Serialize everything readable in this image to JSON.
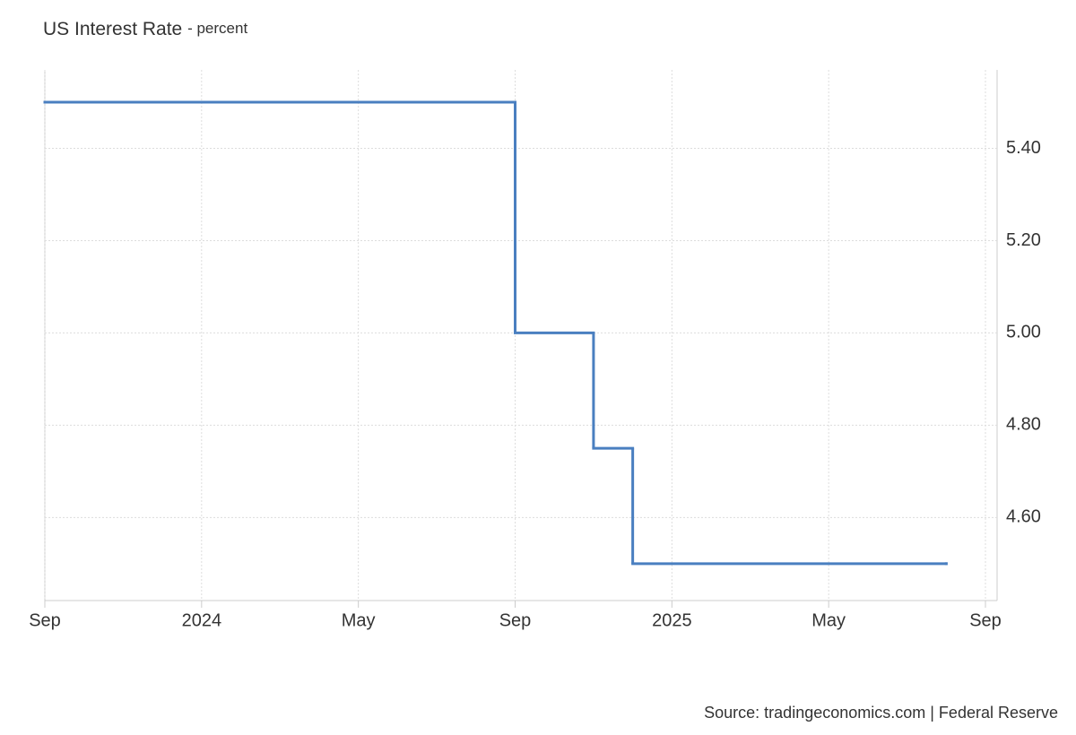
{
  "chart_data": {
    "type": "line",
    "step": true,
    "title": "US Interest Rate",
    "subtitle": "- percent",
    "source": "Source: tradingeconomics.com | Federal Reserve",
    "x": [
      "2023-09",
      "2024-09",
      "2024-11",
      "2024-12",
      "2025-08"
    ],
    "series": [
      {
        "color": "#4a7fc0",
        "values": [
          5.5,
          5.0,
          4.75,
          4.5,
          4.5
        ]
      }
    ],
    "xlim": [
      "2023-09",
      "2025-09"
    ],
    "xticks": [
      {
        "value": "2023-09",
        "label": "Sep"
      },
      {
        "value": "2024-01",
        "label": "2024"
      },
      {
        "value": "2024-05",
        "label": "May"
      },
      {
        "value": "2024-09",
        "label": "Sep"
      },
      {
        "value": "2025-01",
        "label": "2025"
      },
      {
        "value": "2025-05",
        "label": "May"
      },
      {
        "value": "2025-09",
        "label": "Sep"
      }
    ],
    "ylim": [
      4.42,
      5.57
    ],
    "yticks": [
      {
        "value": 4.6,
        "label": "4.60"
      },
      {
        "value": 4.8,
        "label": "4.80"
      },
      {
        "value": 5.0,
        "label": "5.00"
      },
      {
        "value": 5.2,
        "label": "5.20"
      },
      {
        "value": 5.4,
        "label": "5.40"
      }
    ],
    "grid": true
  }
}
